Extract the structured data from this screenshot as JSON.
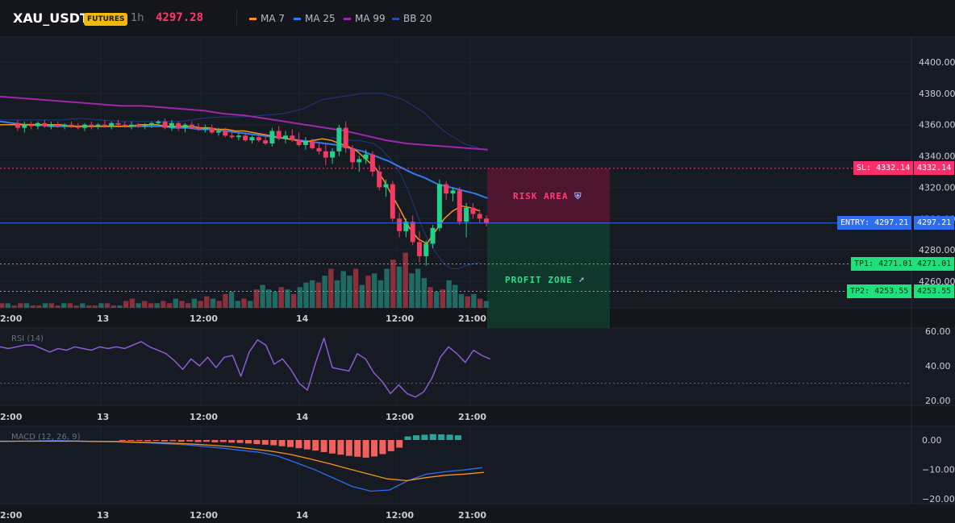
{
  "header": {
    "symbol": "XAU_USDT",
    "badge": "FUTURES",
    "timeframe": "1h",
    "price": "4297.28",
    "indicators": [
      {
        "label": "MA 7",
        "color": "#f7931a"
      },
      {
        "label": "MA 25",
        "color": "#2f7bf0"
      },
      {
        "label": "MA 99",
        "color": "#9c27b0"
      },
      {
        "label": "BB 20",
        "color": "#1f3f8f"
      }
    ]
  },
  "colors": {
    "up": "#1fd18a",
    "down": "#f23a62",
    "vol_up": "#1f6b63",
    "vol_down": "#8c2f3d",
    "risk": "#5a1530",
    "profit": "#0f3b2c",
    "sl": "#ff2d6b",
    "entry": "#2f6df0",
    "tp": "#1fe07c"
  },
  "price_axis": {
    "ticks": [
      "4400.00",
      "4380.00",
      "4360.00",
      "4340.00",
      "4320.00",
      "4300.00",
      "4280.00",
      "4260.00"
    ]
  },
  "time_axis": {
    "labels": [
      "2:00",
      "13",
      "12:00",
      "14",
      "12:00",
      "21:00"
    ]
  },
  "levels": {
    "sl": {
      "tag": "SL: 4332.14",
      "value": "4332.14",
      "price": 4332.14
    },
    "entry": {
      "tag": "ENTRY: 4297.21",
      "value": "4297.21",
      "price": 4297.21
    },
    "tp1": {
      "tag": "TP1: 4271.01",
      "value": "4271.01",
      "price": 4271.01
    },
    "tp2": {
      "tag": "TP2: 4253.55",
      "value": "4253.55",
      "price": 4253.55
    }
  },
  "zones": {
    "risk_label": "RISK AREA",
    "profit_label": "PROFIT ZONE"
  },
  "rsi": {
    "label": "RSI (14)",
    "ticks": [
      "60.00",
      "40.00",
      "20.00"
    ],
    "level": 30
  },
  "macd": {
    "label": "MACD (12, 26, 9)",
    "ticks": [
      "0.00",
      "−10.00",
      "−20.00"
    ]
  },
  "chart_data": {
    "type": "line",
    "candles_ohlc": [
      [
        4361,
        4363,
        4356,
        4358
      ],
      [
        4358,
        4362,
        4355,
        4360
      ],
      [
        4360,
        4362,
        4357,
        4359
      ],
      [
        4359,
        4362,
        4357,
        4361
      ],
      [
        4361,
        4363,
        4358,
        4359
      ],
      [
        4359,
        4362,
        4357,
        4360
      ],
      [
        4360,
        4362,
        4358,
        4359
      ],
      [
        4359,
        4361,
        4357,
        4360
      ],
      [
        4360,
        4362,
        4358,
        4359
      ],
      [
        4359,
        4361,
        4357,
        4358
      ],
      [
        4358,
        4361,
        4356,
        4360
      ],
      [
        4360,
        4362,
        4357,
        4359
      ],
      [
        4359,
        4361,
        4357,
        4360
      ],
      [
        4360,
        4363,
        4358,
        4359
      ],
      [
        4359,
        4362,
        4357,
        4361
      ],
      [
        4361,
        4363,
        4359,
        4360
      ],
      [
        4360,
        4362,
        4358,
        4359
      ],
      [
        4359,
        4362,
        4357,
        4360
      ],
      [
        4360,
        4361,
        4358,
        4359
      ],
      [
        4359,
        4361,
        4357,
        4360
      ],
      [
        4360,
        4362,
        4358,
        4361
      ],
      [
        4361,
        4363,
        4359,
        4362
      ],
      [
        4362,
        4364,
        4357,
        4358
      ],
      [
        4358,
        4363,
        4356,
        4361
      ],
      [
        4361,
        4362,
        4356,
        4358
      ],
      [
        4358,
        4361,
        4355,
        4360
      ],
      [
        4360,
        4362,
        4357,
        4358
      ],
      [
        4358,
        4361,
        4356,
        4357
      ],
      [
        4357,
        4360,
        4355,
        4358
      ],
      [
        4358,
        4360,
        4354,
        4355
      ],
      [
        4355,
        4358,
        4353,
        4356
      ],
      [
        4356,
        4358,
        4352,
        4353
      ],
      [
        4353,
        4356,
        4351,
        4352
      ],
      [
        4352,
        4355,
        4350,
        4353
      ],
      [
        4353,
        4355,
        4349,
        4350
      ],
      [
        4350,
        4353,
        4348,
        4352
      ],
      [
        4352,
        4354,
        4349,
        4350
      ],
      [
        4350,
        4353,
        4347,
        4348
      ],
      [
        4348,
        4358,
        4346,
        4356
      ],
      [
        4356,
        4359,
        4350,
        4351
      ],
      [
        4351,
        4356,
        4348,
        4353
      ],
      [
        4353,
        4357,
        4349,
        4350
      ],
      [
        4350,
        4355,
        4346,
        4347
      ],
      [
        4347,
        4352,
        4344,
        4349
      ],
      [
        4349,
        4351,
        4344,
        4345
      ],
      [
        4345,
        4348,
        4341,
        4343
      ],
      [
        4343,
        4348,
        4334,
        4339
      ],
      [
        4339,
        4345,
        4335,
        4343
      ],
      [
        4343,
        4360,
        4340,
        4358
      ],
      [
        4358,
        4362,
        4342,
        4345
      ],
      [
        4345,
        4347,
        4332,
        4336
      ],
      [
        4336,
        4340,
        4330,
        4338
      ],
      [
        4338,
        4344,
        4335,
        4341
      ],
      [
        4341,
        4343,
        4327,
        4330
      ],
      [
        4330,
        4334,
        4318,
        4320
      ],
      [
        4320,
        4325,
        4314,
        4322
      ],
      [
        4322,
        4324,
        4298,
        4300
      ],
      [
        4300,
        4304,
        4288,
        4292
      ],
      [
        4292,
        4300,
        4288,
        4298
      ],
      [
        4298,
        4302,
        4283,
        4285
      ],
      [
        4285,
        4292,
        4272,
        4276
      ],
      [
        4276,
        4286,
        4270,
        4284
      ],
      [
        4284,
        4296,
        4281,
        4294
      ],
      [
        4294,
        4325,
        4292,
        4322
      ],
      [
        4322,
        4324,
        4312,
        4316
      ],
      [
        4316,
        4320,
        4311,
        4318
      ],
      [
        4318,
        4320,
        4296,
        4298
      ],
      [
        4298,
        4310,
        4288,
        4307
      ],
      [
        4307,
        4310,
        4300,
        4303
      ],
      [
        4303,
        4306,
        4297,
        4300
      ],
      [
        4300,
        4302,
        4295,
        4297
      ]
    ],
    "ma7": [
      4360,
      4360,
      4360,
      4360,
      4360,
      4360,
      4360,
      4360,
      4359,
      4359,
      4359,
      4359,
      4359,
      4359,
      4359,
      4359,
      4360,
      4360,
      4360,
      4359,
      4359,
      4359,
      4359,
      4358,
      4358,
      4357,
      4357,
      4356,
      4356,
      4355,
      4354,
      4353,
      4352,
      4351,
      4350,
      4349,
      4350,
      4351,
      4350,
      4348,
      4346,
      4343,
      4338,
      4333,
      4325,
      4315,
      4305,
      4294,
      4287,
      4284,
      4292,
      4300,
      4305,
      4308,
      4307,
      4305
    ],
    "ma25": [
      4362,
      4361,
      4360,
      4360,
      4359,
      4359,
      4359,
      4359,
      4359,
      4359,
      4359,
      4359,
      4359,
      4359,
      4358,
      4358,
      4357,
      4357,
      4356,
      4355,
      4354,
      4353,
      4352,
      4351,
      4350,
      4349,
      4348,
      4347,
      4345,
      4343,
      4340,
      4337,
      4333,
      4329,
      4326,
      4322,
      4320,
      4318,
      4316,
      4313
    ],
    "ma99": [
      4378,
      4377,
      4376,
      4375,
      4374,
      4373,
      4372,
      4372,
      4371,
      4370,
      4369,
      4367,
      4366,
      4364,
      4362,
      4360,
      4358,
      4356,
      4353,
      4350,
      4348,
      4347,
      4346,
      4345,
      4344
    ],
    "bb_upper": [
      4363,
      4363,
      4363,
      4363,
      4364,
      4363,
      4362,
      4362,
      4362,
      4362,
      4364,
      4365,
      4365,
      4366,
      4367,
      4370,
      4376,
      4378,
      4380,
      4380,
      4376,
      4368,
      4356,
      4348,
      4344
    ],
    "bb_lower": [
      4352,
      4351,
      4351,
      4350,
      4350,
      4349,
      4348,
      4345,
      4340,
      4335,
      4327,
      4317,
      4305,
      4293,
      4284,
      4277,
      4271,
      4268,
      4268,
      4270,
      4271,
      4272
    ],
    "volumes": [
      2,
      2,
      1,
      2,
      2,
      1,
      1,
      2,
      2,
      1,
      2,
      2,
      1,
      2,
      1,
      1,
      2,
      2,
      1,
      1,
      3,
      4,
      2,
      3,
      2,
      2,
      3,
      2,
      4,
      3,
      2,
      4,
      3,
      5,
      4,
      3,
      6,
      7,
      3,
      4,
      3,
      8,
      10,
      8,
      7,
      9,
      8,
      6,
      9,
      11,
      12,
      11,
      14,
      17,
      12,
      16,
      14,
      17,
      10,
      14,
      15,
      12,
      17,
      21,
      18,
      24,
      15,
      17,
      13,
      9,
      7,
      8,
      12,
      10,
      6,
      5,
      6,
      4,
      3
    ],
    "rsi": [
      51,
      50,
      51,
      52,
      52,
      50,
      48,
      50,
      49,
      51,
      50,
      49,
      51,
      50,
      51,
      50,
      52,
      54,
      51,
      49,
      47,
      43,
      38,
      44,
      40,
      45,
      39,
      45,
      46,
      34,
      48,
      55,
      52,
      41,
      44,
      38,
      30,
      26,
      42,
      56,
      39,
      38,
      37,
      47,
      44,
      36,
      31,
      24,
      29,
      24,
      22,
      25,
      33,
      45,
      51,
      47,
      42,
      49,
      46,
      44
    ],
    "macd_line": [
      -0.5,
      -0.4,
      -0.3,
      -0.2,
      -0.3,
      -0.5,
      -0.6,
      -0.8,
      -1.0,
      -1.3,
      -1.6,
      -2.2,
      -2.8,
      -3.5,
      -4.2,
      -5.5,
      -7.8,
      -10.2,
      -13.0,
      -15.8,
      -17.4,
      -17.0,
      -13.8,
      -11.6,
      -10.8,
      -10.2,
      -9.4
    ],
    "macd_signal": [
      -0.4,
      -0.4,
      -0.4,
      -0.4,
      -0.4,
      -0.5,
      -0.5,
      -0.7,
      -0.9,
      -1.1,
      -1.4,
      -1.8,
      -2.3,
      -3.0,
      -3.8,
      -4.9,
      -6.4,
      -8.0,
      -9.8,
      -11.5,
      -13.2,
      -13.8,
      -12.8,
      -12.0,
      -11.6,
      -11.0
    ]
  }
}
